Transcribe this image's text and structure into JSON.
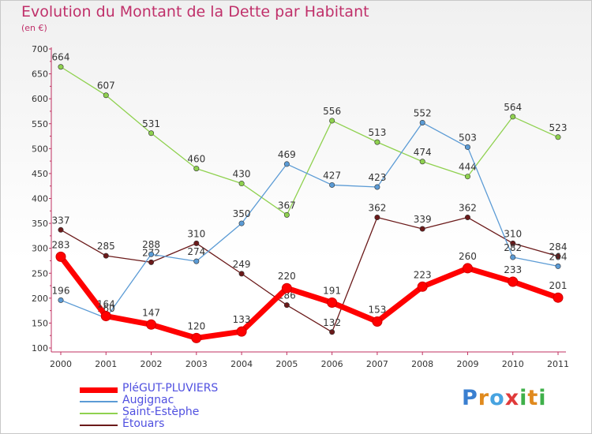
{
  "title": "Evolution du Montant de la Dette par Habitant",
  "unit": "(en €)",
  "logo": {
    "text": "Proxiti",
    "colors": [
      "#3a7fd0",
      "#e08a1e",
      "#47a3e0",
      "#e03a3a",
      "#3fb04a",
      "#e08a1e",
      "#3fb04a"
    ]
  },
  "chart_data": {
    "type": "line",
    "x": [
      "2000",
      "2001",
      "2002",
      "2003",
      "2004",
      "2005",
      "2006",
      "2007",
      "2008",
      "2009",
      "2010",
      "2011"
    ],
    "ylim": [
      100,
      700
    ],
    "yticks": [
      100,
      150,
      200,
      250,
      300,
      350,
      400,
      450,
      500,
      550,
      600,
      650,
      700
    ],
    "grid": false,
    "legend_position": "bottom-left",
    "series": [
      {
        "name": "PléGUT-PLUVIERS",
        "color": "#ff0000",
        "values": [
          283,
          164,
          147,
          120,
          133,
          220,
          191,
          153,
          223,
          260,
          233,
          201
        ]
      },
      {
        "name": "Augignac",
        "color": "#5b9bd5",
        "values": [
          196,
          160,
          288,
          274,
          350,
          469,
          427,
          423,
          552,
          503,
          282,
          264
        ]
      },
      {
        "name": "Saint-Estèphe",
        "color": "#8fd14f",
        "values": [
          664,
          607,
          531,
          460,
          430,
          367,
          556,
          513,
          474,
          444,
          564,
          523
        ]
      },
      {
        "name": "Étouars",
        "color": "#6b1a1a",
        "values": [
          337,
          285,
          272,
          310,
          249,
          186,
          132,
          362,
          339,
          362,
          310,
          284
        ]
      }
    ]
  }
}
